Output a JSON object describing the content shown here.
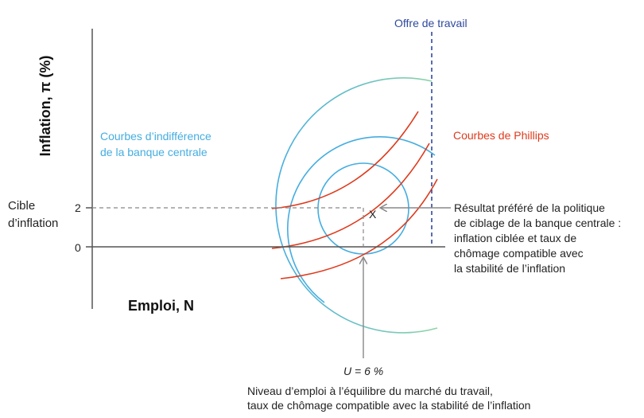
{
  "colors": {
    "axis": "#555555",
    "indifference": "#45ade0",
    "indifference_end": "#8fd4a8",
    "phillips": "#de3a1c",
    "labor_supply": "#2e4a9e",
    "guides": "#888888",
    "text": "#222222"
  },
  "axes": {
    "y_title": "Inflation, π (%)",
    "x_title": "Emploi, N",
    "tick_2": "2",
    "tick_0": "0",
    "target_label_1": "Cible",
    "target_label_2": "d’inflation"
  },
  "labels": {
    "labor_supply": "Offre de travail",
    "indifference_1": "Courbes d’indifférence",
    "indifference_2": "de la banque centrale",
    "phillips": "Courbes de Phillips",
    "point": "X",
    "unemployment": "U = 6 %",
    "result": [
      "Résultat préféré de la politique",
      "de ciblage de la banque centrale :",
      "inflation ciblée et taux de",
      "chômage compatible avec",
      "la stabilité de l’inflation"
    ],
    "equilibrium": [
      "Niveau d’emploi à l’équilibre du marché du travail,",
      "taux de chômage compatible avec la stabilité de l’inflation"
    ]
  }
}
